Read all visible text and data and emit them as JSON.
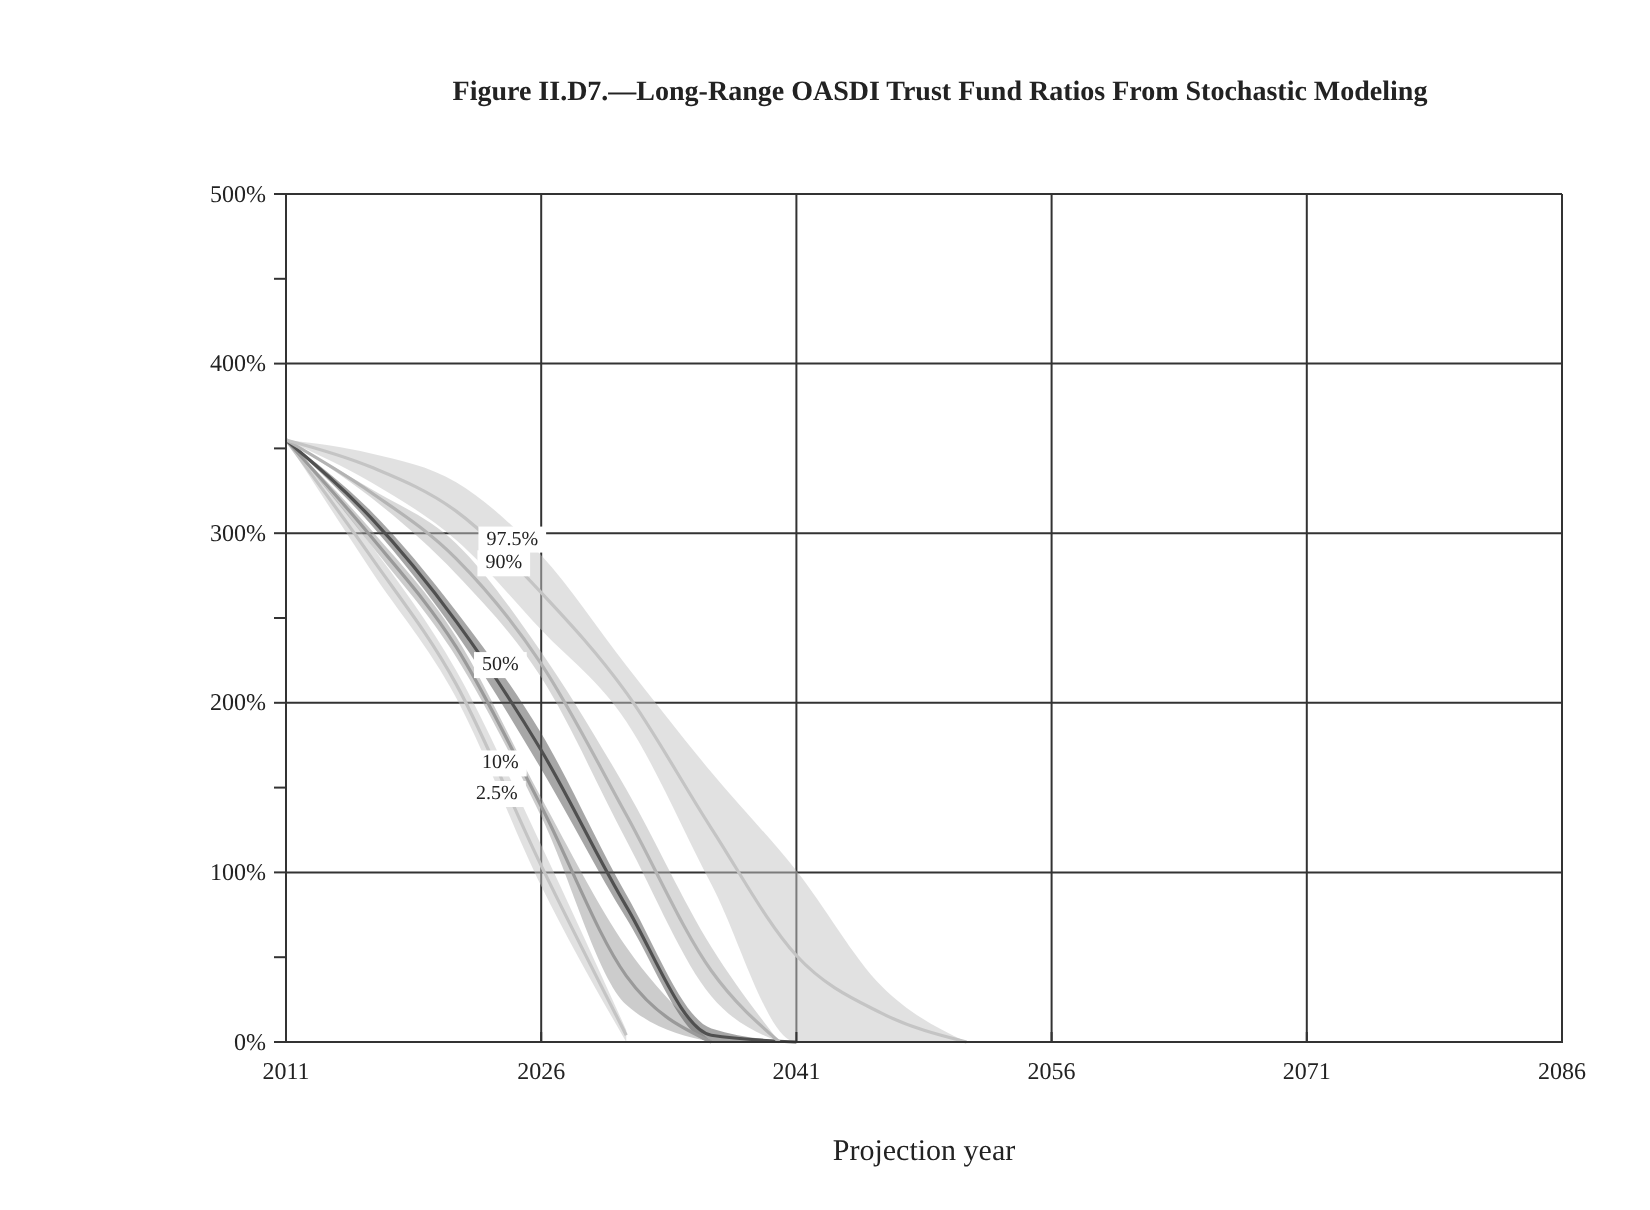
{
  "chart_data": {
    "type": "line",
    "title": "Figure II.D7.—Long-Range OASDI Trust Fund Ratios From Stochastic Modeling",
    "xlabel": "Projection year",
    "x": [
      2011,
      2016,
      2021,
      2026,
      2031,
      2036,
      2041,
      2046,
      2051
    ],
    "series": [
      {
        "color": "#c4c4c4",
        "x": [
          2011,
          2016,
          2021,
          2026,
          2031
        ],
        "values": [
          355,
          286,
          211,
          104,
          4
        ],
        "lower": [
          355,
          278,
          203,
          92,
          0
        ],
        "upper": [
          355,
          293,
          219,
          116,
          7
        ]
      },
      {
        "color": "#9a9a9a",
        "x": [
          2011,
          2016,
          2021,
          2026,
          2031,
          2036
        ],
        "values": [
          355,
          298,
          233,
          139,
          39,
          0
        ],
        "lower": [
          355,
          293,
          227,
          133,
          22,
          0
        ],
        "upper": [
          355,
          302,
          239,
          144,
          56,
          0
        ]
      },
      {
        "color": "#505050",
        "x": [
          2011,
          2016,
          2021,
          2026,
          2031,
          2036,
          2041
        ],
        "values": [
          355,
          309,
          248,
          172,
          80,
          4,
          0
        ],
        "lower": [
          355,
          305,
          241,
          161,
          73,
          0,
          0
        ],
        "upper": [
          355,
          313,
          254,
          182,
          87,
          8,
          0
        ]
      },
      {
        "color": "#b4b4b4",
        "x": [
          2011,
          2016,
          2021,
          2026,
          2031,
          2036,
          2040
        ],
        "values": [
          355,
          324,
          285,
          223,
          134,
          42,
          0
        ],
        "lower": [
          355,
          321,
          276,
          215,
          119,
          27,
          0
        ],
        "upper": [
          355,
          326,
          294,
          230,
          149,
          56,
          0
        ]
      },
      {
        "color": "#c4c4c4",
        "values": [
          355,
          339,
          313,
          265,
          206,
          126,
          51,
          17,
          0
        ],
        "lower": [
          355,
          330,
          296,
          243,
          189,
          93,
          0,
          0,
          0
        ],
        "upper": [
          355,
          347,
          330,
          287,
          222,
          159,
          101,
          33,
          0
        ]
      }
    ],
    "annotations": [
      {
        "text": "97.5%",
        "x": 2024.3,
        "y": 296
      },
      {
        "text": "90%",
        "x": 2023.8,
        "y": 282
      },
      {
        "text": "50%",
        "x": 2023.6,
        "y": 222
      },
      {
        "text": "10%",
        "x": 2023.6,
        "y": 164
      },
      {
        "text": "2.5%",
        "x": 2023.4,
        "y": 146
      }
    ],
    "xlim": [
      2011,
      2086
    ],
    "xticks": [
      2011,
      2026,
      2041,
      2056,
      2071,
      2086
    ],
    "ylim": [
      0,
      500
    ],
    "yticks": [
      {
        "value": 0,
        "label": "0%"
      },
      {
        "value": 50,
        "label": null
      },
      {
        "value": 100,
        "label": "100%"
      },
      {
        "value": 150,
        "label": null
      },
      {
        "value": 200,
        "label": "200%"
      },
      {
        "value": 250,
        "label": null
      },
      {
        "value": 300,
        "label": "300%"
      },
      {
        "value": 350,
        "label": null
      },
      {
        "value": 400,
        "label": "400%"
      },
      {
        "value": 450,
        "label": null
      },
      {
        "value": 500,
        "label": "500%"
      }
    ],
    "grid": true
  }
}
